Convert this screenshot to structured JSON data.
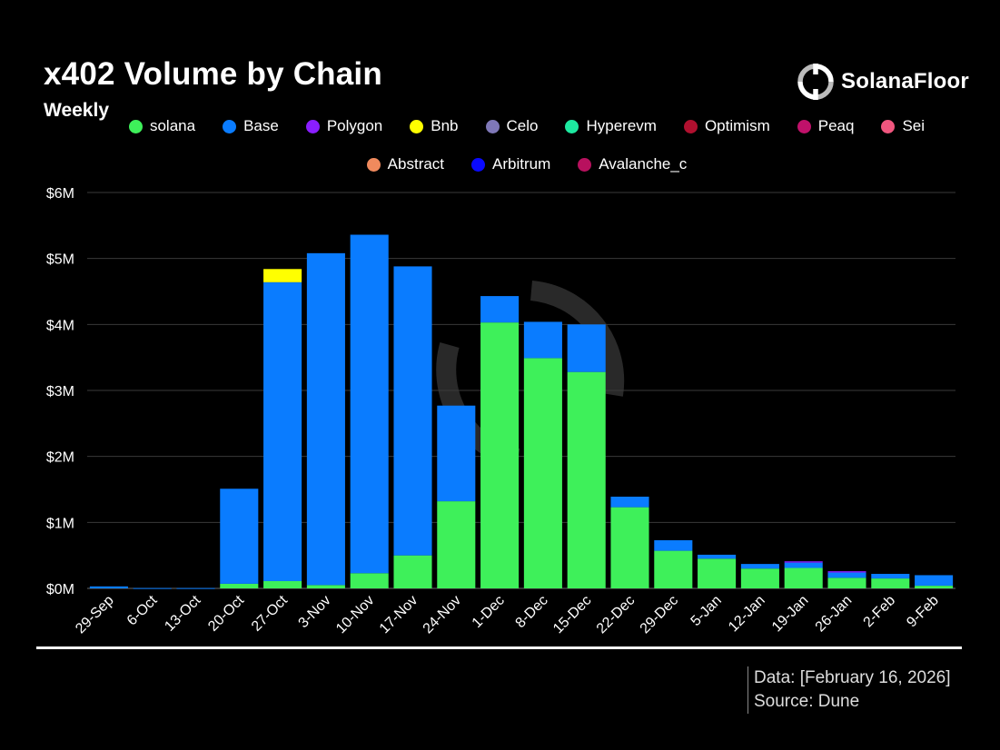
{
  "header": {
    "title": "x402 Volume by Chain",
    "subtitle": "Weekly",
    "brand": "SolanaFloor"
  },
  "footer": {
    "data_line": "Data: [February 16, 2026]",
    "source_line": "Source: Dune"
  },
  "colors": {
    "background": "#000000",
    "gridline": "#3a3a3a",
    "rule": "#ffffff"
  },
  "chart_data": {
    "type": "bar",
    "stacked": true,
    "title": "x402 Volume by Chain",
    "subtitle": "Weekly",
    "xlabel": "",
    "ylabel": "",
    "ylim": [
      0,
      6000000
    ],
    "yticks": [
      0,
      1000000,
      2000000,
      3000000,
      4000000,
      5000000,
      6000000
    ],
    "ytick_labels": [
      "$0M",
      "$1M",
      "$2M",
      "$3M",
      "$4M",
      "$5M",
      "$6M"
    ],
    "grid": true,
    "legend_position": "top",
    "categories": [
      "29-Sep",
      "6-Oct",
      "13-Oct",
      "20-Oct",
      "27-Oct",
      "3-Nov",
      "10-Nov",
      "17-Nov",
      "24-Nov",
      "1-Dec",
      "8-Dec",
      "15-Dec",
      "22-Dec",
      "29-Dec",
      "5-Jan",
      "12-Jan",
      "19-Jan",
      "26-Jan",
      "2-Feb",
      "9-Feb"
    ],
    "series": [
      {
        "name": "solana",
        "color": "#3ef05a",
        "values": [
          0,
          0,
          0,
          70000,
          110000,
          50000,
          230000,
          500000,
          1320000,
          4030000,
          3490000,
          3280000,
          1230000,
          570000,
          450000,
          300000,
          310000,
          160000,
          150000,
          40000
        ]
      },
      {
        "name": "Base",
        "color": "#0a7cff",
        "values": [
          30000,
          5000,
          5000,
          1440000,
          4530000,
          5030000,
          5130000,
          4380000,
          1450000,
          400000,
          550000,
          720000,
          160000,
          160000,
          60000,
          70000,
          80000,
          80000,
          70000,
          160000
        ]
      },
      {
        "name": "Polygon",
        "color": "#8a1eff",
        "values": [
          0,
          0,
          0,
          0,
          0,
          0,
          0,
          0,
          0,
          0,
          0,
          0,
          0,
          0,
          0,
          0,
          20000,
          20000,
          0,
          0
        ]
      },
      {
        "name": "Bnb",
        "color": "#ffff00",
        "values": [
          0,
          0,
          0,
          0,
          200000,
          0,
          0,
          0,
          0,
          0,
          0,
          0,
          0,
          0,
          0,
          0,
          0,
          0,
          0,
          0
        ]
      },
      {
        "name": "Celo",
        "color": "#7f78b8",
        "values": [
          0,
          0,
          0,
          0,
          0,
          0,
          0,
          0,
          0,
          0,
          0,
          0,
          0,
          0,
          0,
          0,
          0,
          0,
          0,
          0
        ]
      },
      {
        "name": "Hyperevm",
        "color": "#1de9a0",
        "values": [
          0,
          0,
          0,
          0,
          0,
          0,
          0,
          0,
          0,
          0,
          0,
          0,
          0,
          0,
          0,
          0,
          0,
          0,
          0,
          0
        ]
      },
      {
        "name": "Optimism",
        "color": "#b0102f",
        "values": [
          0,
          0,
          0,
          0,
          0,
          0,
          0,
          0,
          0,
          0,
          0,
          0,
          0,
          0,
          0,
          0,
          0,
          0,
          0,
          0
        ]
      },
      {
        "name": "Peaq",
        "color": "#c0116a",
        "values": [
          0,
          0,
          0,
          0,
          0,
          0,
          0,
          0,
          0,
          0,
          0,
          0,
          0,
          0,
          0,
          0,
          0,
          0,
          0,
          0
        ]
      },
      {
        "name": "Sei",
        "color": "#f0567e",
        "values": [
          0,
          0,
          0,
          0,
          0,
          0,
          0,
          0,
          0,
          0,
          0,
          0,
          0,
          0,
          0,
          0,
          0,
          0,
          0,
          0
        ]
      },
      {
        "name": "Abstract",
        "color": "#f08a5d",
        "values": [
          0,
          0,
          0,
          0,
          0,
          0,
          0,
          0,
          0,
          0,
          0,
          0,
          0,
          0,
          0,
          0,
          0,
          0,
          0,
          0
        ]
      },
      {
        "name": "Arbitrum",
        "color": "#0a0aff",
        "values": [
          0,
          0,
          0,
          0,
          0,
          0,
          0,
          0,
          0,
          0,
          0,
          0,
          0,
          0,
          0,
          0,
          0,
          0,
          0,
          0
        ]
      },
      {
        "name": "Avalanche_c",
        "color": "#b8115e",
        "values": [
          0,
          0,
          0,
          0,
          0,
          0,
          0,
          0,
          0,
          0,
          0,
          0,
          0,
          0,
          0,
          0,
          0,
          0,
          0,
          0
        ]
      }
    ]
  }
}
